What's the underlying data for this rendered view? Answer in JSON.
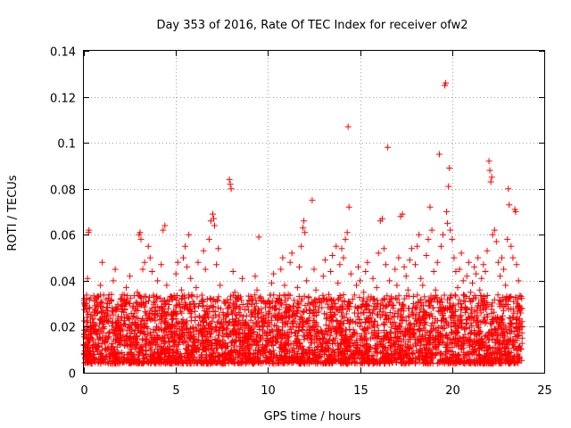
{
  "chart_data": {
    "type": "scatter",
    "title": "Day 353 of 2016, Rate Of TEC Index for receiver ofw2",
    "xlabel": "GPS time / hours",
    "ylabel": "ROTI / TECUs",
    "xlim": [
      0,
      25
    ],
    "ylim": [
      0,
      0.14
    ],
    "xticks": [
      0,
      5,
      10,
      15,
      20,
      25
    ],
    "xtick_labels": [
      "0",
      "5",
      "10",
      "15",
      "20",
      "25"
    ],
    "yticks": [
      0,
      0.02,
      0.04,
      0.06,
      0.08,
      0.1,
      0.12,
      0.14
    ],
    "ytick_labels": [
      "0",
      "0.02",
      "0.04",
      "0.06",
      "0.08",
      "0.1",
      "0.12",
      "0.14"
    ],
    "grid": true,
    "marker": "+",
    "color": "#ff0000",
    "series": [
      {
        "name": "ROTI",
        "points": [
          [
            0.0,
            0.012
          ],
          [
            0.1,
            0.015
          ],
          [
            0.15,
            0.022
          ],
          [
            0.2,
            0.041
          ],
          [
            0.25,
            0.061
          ],
          [
            0.28,
            0.062
          ],
          [
            0.3,
            0.028
          ],
          [
            0.35,
            0.009
          ],
          [
            0.4,
            0.018
          ],
          [
            0.5,
            0.014
          ],
          [
            0.6,
            0.025
          ],
          [
            0.7,
            0.011
          ],
          [
            0.8,
            0.033
          ],
          [
            0.9,
            0.038
          ],
          [
            1.0,
            0.048
          ],
          [
            1.1,
            0.02
          ],
          [
            1.2,
            0.016
          ],
          [
            1.3,
            0.027
          ],
          [
            1.4,
            0.008
          ],
          [
            1.5,
            0.034
          ],
          [
            1.6,
            0.04
          ],
          [
            1.7,
            0.045
          ],
          [
            1.8,
            0.022
          ],
          [
            1.9,
            0.013
          ],
          [
            2.0,
            0.019
          ],
          [
            2.1,
            0.031
          ],
          [
            2.2,
            0.012
          ],
          [
            2.3,
            0.037
          ],
          [
            2.4,
            0.024
          ],
          [
            2.5,
            0.042
          ],
          [
            2.6,
            0.018
          ],
          [
            2.7,
            0.029
          ],
          [
            2.8,
            0.011
          ],
          [
            2.9,
            0.035
          ],
          [
            3.0,
            0.06
          ],
          [
            3.05,
            0.061
          ],
          [
            3.1,
            0.058
          ],
          [
            3.2,
            0.045
          ],
          [
            3.3,
            0.048
          ],
          [
            3.4,
            0.02
          ],
          [
            3.5,
            0.055
          ],
          [
            3.6,
            0.05
          ],
          [
            3.7,
            0.044
          ],
          [
            3.8,
            0.033
          ],
          [
            3.9,
            0.012
          ],
          [
            4.0,
            0.04
          ],
          [
            4.1,
            0.027
          ],
          [
            4.2,
            0.047
          ],
          [
            4.3,
            0.062
          ],
          [
            4.4,
            0.064
          ],
          [
            4.5,
            0.038
          ],
          [
            4.6,
            0.021
          ],
          [
            4.7,
            0.015
          ],
          [
            4.8,
            0.032
          ],
          [
            4.9,
            0.026
          ],
          [
            5.0,
            0.043
          ],
          [
            5.1,
            0.048
          ],
          [
            5.2,
            0.019
          ],
          [
            5.3,
            0.036
          ],
          [
            5.4,
            0.05
          ],
          [
            5.5,
            0.055
          ],
          [
            5.6,
            0.046
          ],
          [
            5.7,
            0.06
          ],
          [
            5.8,
            0.041
          ],
          [
            5.9,
            0.012
          ],
          [
            6.0,
            0.029
          ],
          [
            6.1,
            0.037
          ],
          [
            6.2,
            0.048
          ],
          [
            6.3,
            0.024
          ],
          [
            6.4,
            0.016
          ],
          [
            6.5,
            0.053
          ],
          [
            6.6,
            0.045
          ],
          [
            6.7,
            0.032
          ],
          [
            6.8,
            0.058
          ],
          [
            6.9,
            0.066
          ],
          [
            7.0,
            0.069
          ],
          [
            7.05,
            0.067
          ],
          [
            7.1,
            0.064
          ],
          [
            7.2,
            0.047
          ],
          [
            7.3,
            0.054
          ],
          [
            7.4,
            0.038
          ],
          [
            7.5,
            0.021
          ],
          [
            7.6,
            0.031
          ],
          [
            7.7,
            0.013
          ],
          [
            7.8,
            0.028
          ],
          [
            7.9,
            0.084
          ],
          [
            7.95,
            0.082
          ],
          [
            8.0,
            0.08
          ],
          [
            8.1,
            0.044
          ],
          [
            8.2,
            0.035
          ],
          [
            8.3,
            0.025
          ],
          [
            8.4,
            0.017
          ],
          [
            8.5,
            0.033
          ],
          [
            8.6,
            0.041
          ],
          [
            8.7,
            0.014
          ],
          [
            8.8,
            0.022
          ],
          [
            8.9,
            0.03
          ],
          [
            9.0,
            0.012
          ],
          [
            9.1,
            0.019
          ],
          [
            9.2,
            0.026
          ],
          [
            9.3,
            0.042
          ],
          [
            9.4,
            0.036
          ],
          [
            9.5,
            0.059
          ],
          [
            9.6,
            0.033
          ],
          [
            9.7,
            0.022
          ],
          [
            9.8,
            0.011
          ],
          [
            9.9,
            0.017
          ],
          [
            10.0,
            0.024
          ],
          [
            10.1,
            0.03
          ],
          [
            10.2,
            0.039
          ],
          [
            10.3,
            0.043
          ],
          [
            10.4,
            0.028
          ],
          [
            10.5,
            0.018
          ],
          [
            10.6,
            0.032
          ],
          [
            10.7,
            0.045
          ],
          [
            10.8,
            0.05
          ],
          [
            10.9,
            0.038
          ],
          [
            11.0,
            0.026
          ],
          [
            11.1,
            0.034
          ],
          [
            11.2,
            0.048
          ],
          [
            11.3,
            0.052
          ],
          [
            11.4,
            0.029
          ],
          [
            11.5,
            0.016
          ],
          [
            11.6,
            0.037
          ],
          [
            11.7,
            0.046
          ],
          [
            11.8,
            0.055
          ],
          [
            11.9,
            0.063
          ],
          [
            11.95,
            0.066
          ],
          [
            12.0,
            0.061
          ],
          [
            12.1,
            0.04
          ],
          [
            12.2,
            0.033
          ],
          [
            12.3,
            0.027
          ],
          [
            12.4,
            0.075
          ],
          [
            12.5,
            0.045
          ],
          [
            12.6,
            0.036
          ],
          [
            12.7,
            0.02
          ],
          [
            12.8,
            0.014
          ],
          [
            12.9,
            0.031
          ],
          [
            13.0,
            0.042
          ],
          [
            13.1,
            0.049
          ],
          [
            13.2,
            0.024
          ],
          [
            13.3,
            0.034
          ],
          [
            13.4,
            0.044
          ],
          [
            13.5,
            0.051
          ],
          [
            13.6,
            0.03
          ],
          [
            13.7,
            0.055
          ],
          [
            13.8,
            0.039
          ],
          [
            13.9,
            0.047
          ],
          [
            14.0,
            0.054
          ],
          [
            14.1,
            0.05
          ],
          [
            14.2,
            0.058
          ],
          [
            14.3,
            0.061
          ],
          [
            14.35,
            0.107
          ],
          [
            14.4,
            0.072
          ],
          [
            14.5,
            0.043
          ],
          [
            14.6,
            0.032
          ],
          [
            14.7,
            0.026
          ],
          [
            14.8,
            0.038
          ],
          [
            14.9,
            0.046
          ],
          [
            15.0,
            0.04
          ],
          [
            15.1,
            0.029
          ],
          [
            15.2,
            0.035
          ],
          [
            15.3,
            0.044
          ],
          [
            15.4,
            0.048
          ],
          [
            15.5,
            0.022
          ],
          [
            15.6,
            0.033
          ],
          [
            15.7,
            0.041
          ],
          [
            15.8,
            0.03
          ],
          [
            15.9,
            0.037
          ],
          [
            16.0,
            0.052
          ],
          [
            16.1,
            0.066
          ],
          [
            16.2,
            0.067
          ],
          [
            16.3,
            0.054
          ],
          [
            16.4,
            0.047
          ],
          [
            16.5,
            0.098
          ],
          [
            16.6,
            0.04
          ],
          [
            16.7,
            0.033
          ],
          [
            16.8,
            0.028
          ],
          [
            16.9,
            0.045
          ],
          [
            17.0,
            0.038
          ],
          [
            17.1,
            0.05
          ],
          [
            17.2,
            0.068
          ],
          [
            17.3,
            0.069
          ],
          [
            17.4,
            0.046
          ],
          [
            17.5,
            0.042
          ],
          [
            17.6,
            0.036
          ],
          [
            17.7,
            0.049
          ],
          [
            17.8,
            0.054
          ],
          [
            17.9,
            0.03
          ],
          [
            18.0,
            0.047
          ],
          [
            18.1,
            0.055
          ],
          [
            18.2,
            0.06
          ],
          [
            18.3,
            0.041
          ],
          [
            18.4,
            0.038
          ],
          [
            18.5,
            0.033
          ],
          [
            18.6,
            0.051
          ],
          [
            18.7,
            0.058
          ],
          [
            18.8,
            0.072
          ],
          [
            18.9,
            0.062
          ],
          [
            19.0,
            0.044
          ],
          [
            19.1,
            0.036
          ],
          [
            19.2,
            0.048
          ],
          [
            19.3,
            0.095
          ],
          [
            19.4,
            0.055
          ],
          [
            19.5,
            0.06
          ],
          [
            19.6,
            0.125
          ],
          [
            19.65,
            0.126
          ],
          [
            19.7,
            0.07
          ],
          [
            19.75,
            0.065
          ],
          [
            19.8,
            0.081
          ],
          [
            19.85,
            0.089
          ],
          [
            19.9,
            0.062
          ],
          [
            20.0,
            0.058
          ],
          [
            20.1,
            0.05
          ],
          [
            20.2,
            0.044
          ],
          [
            20.3,
            0.037
          ],
          [
            20.4,
            0.045
          ],
          [
            20.5,
            0.052
          ],
          [
            20.6,
            0.04
          ],
          [
            20.7,
            0.031
          ],
          [
            20.8,
            0.042
          ],
          [
            20.9,
            0.048
          ],
          [
            21.0,
            0.035
          ],
          [
            21.1,
            0.039
          ],
          [
            21.2,
            0.046
          ],
          [
            21.3,
            0.043
          ],
          [
            21.4,
            0.05
          ],
          [
            21.5,
            0.036
          ],
          [
            21.6,
            0.041
          ],
          [
            21.7,
            0.047
          ],
          [
            21.8,
            0.044
          ],
          [
            21.9,
            0.053
          ],
          [
            22.0,
            0.092
          ],
          [
            22.05,
            0.088
          ],
          [
            22.1,
            0.083
          ],
          [
            22.15,
            0.085
          ],
          [
            22.2,
            0.06
          ],
          [
            22.3,
            0.062
          ],
          [
            22.4,
            0.057
          ],
          [
            22.5,
            0.048
          ],
          [
            22.6,
            0.042
          ],
          [
            22.7,
            0.05
          ],
          [
            22.8,
            0.045
          ],
          [
            22.9,
            0.038
          ],
          [
            23.0,
            0.058
          ],
          [
            23.05,
            0.08
          ],
          [
            23.1,
            0.073
          ],
          [
            23.2,
            0.055
          ],
          [
            23.3,
            0.05
          ],
          [
            23.4,
            0.071
          ],
          [
            23.45,
            0.07
          ],
          [
            23.5,
            0.047
          ],
          [
            23.6,
            0.04
          ],
          [
            23.7,
            0.026
          ],
          [
            23.8,
            0.015
          ]
        ]
      }
    ],
    "background_band": {
      "x_range": [
        0,
        23.8
      ],
      "low_range": [
        0.004,
        0.03
      ],
      "density_per_hour": 170,
      "note": "dense cloud of ROTI values mostly between 0.005 and 0.03 TECU/min across 0-23.8 h"
    }
  }
}
